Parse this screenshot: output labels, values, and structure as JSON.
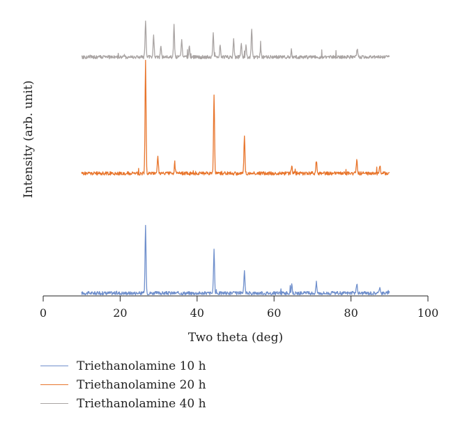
{
  "chart_data": {
    "type": "line",
    "title": "",
    "xlabel": "Two theta (deg)",
    "ylabel": "Intensity (arb. unit)",
    "xlim": [
      0,
      100
    ],
    "xticks": [
      0,
      20,
      40,
      60,
      80,
      100
    ],
    "yticks": false,
    "grid": false,
    "legend_position": "bottom-left",
    "x_range": [
      10,
      90
    ],
    "series": [
      {
        "name": "Triethanolamine 10 h",
        "color": "#6f8fcc",
        "baseline": 0,
        "peaks": [
          {
            "x": 26.6,
            "y": 95
          },
          {
            "x": 44.4,
            "y": 62
          },
          {
            "x": 52.3,
            "y": 30
          },
          {
            "x": 64.6,
            "y": 13
          },
          {
            "x": 71.0,
            "y": 15
          },
          {
            "x": 81.5,
            "y": 14
          },
          {
            "x": 87.5,
            "y": 10
          }
        ]
      },
      {
        "name": "Triethanolamine 20 h",
        "color": "#e8752c",
        "baseline": 0,
        "peaks": [
          {
            "x": 26.6,
            "y": 160
          },
          {
            "x": 29.8,
            "y": 25
          },
          {
            "x": 34.2,
            "y": 12
          },
          {
            "x": 44.4,
            "y": 112
          },
          {
            "x": 52.3,
            "y": 52
          },
          {
            "x": 64.6,
            "y": 10
          },
          {
            "x": 71.0,
            "y": 18
          },
          {
            "x": 81.5,
            "y": 20
          },
          {
            "x": 87.5,
            "y": 12
          }
        ]
      },
      {
        "name": "Triethanolamine 40 h",
        "color": "#a9a4a3",
        "baseline": 0,
        "peaks": [
          {
            "x": 26.6,
            "y": 52
          },
          {
            "x": 28.7,
            "y": 30
          },
          {
            "x": 30.6,
            "y": 16
          },
          {
            "x": 34.0,
            "y": 45
          },
          {
            "x": 36.0,
            "y": 26
          },
          {
            "x": 38.0,
            "y": 16
          },
          {
            "x": 44.2,
            "y": 35
          },
          {
            "x": 46.0,
            "y": 18
          },
          {
            "x": 49.5,
            "y": 27
          },
          {
            "x": 51.5,
            "y": 20
          },
          {
            "x": 52.7,
            "y": 18
          },
          {
            "x": 54.2,
            "y": 40
          },
          {
            "x": 56.5,
            "y": 12
          },
          {
            "x": 64.5,
            "y": 10
          },
          {
            "x": 81.6,
            "y": 12
          }
        ]
      }
    ]
  }
}
